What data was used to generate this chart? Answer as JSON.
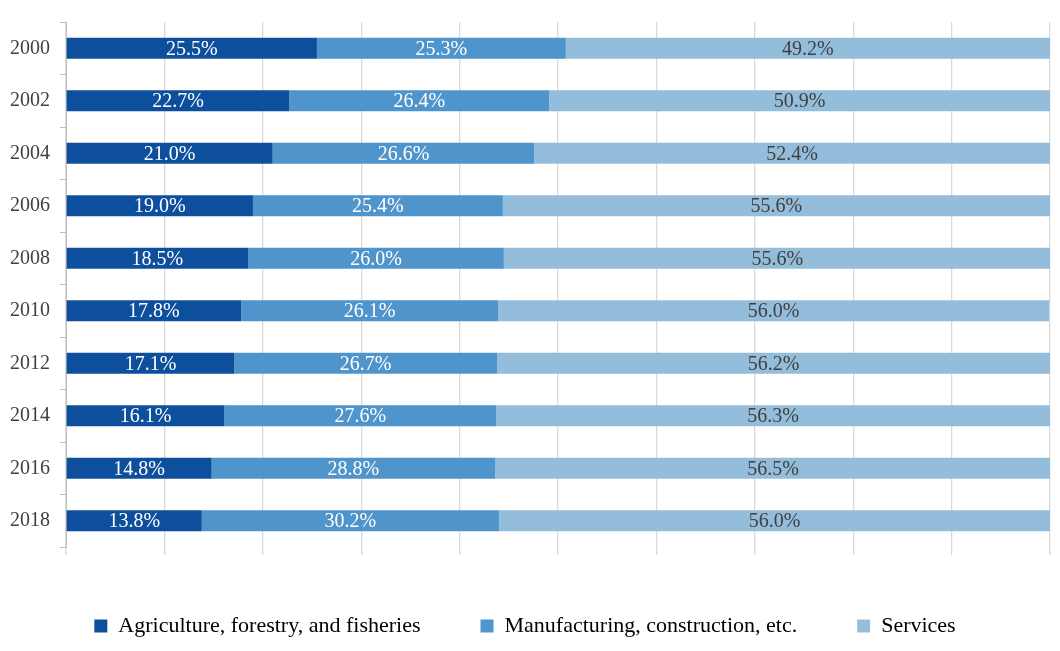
{
  "chart_data": {
    "type": "bar",
    "orientation": "horizontal",
    "stacked": true,
    "categories": [
      "2000",
      "2002",
      "2004",
      "2006",
      "2008",
      "2010",
      "2012",
      "2014",
      "2016",
      "2018"
    ],
    "series": [
      {
        "name": "Agriculture, forestry, and fisheries",
        "color": "#0e4f9d",
        "values": [
          25.5,
          22.7,
          21.0,
          19.0,
          18.5,
          17.8,
          17.1,
          16.1,
          14.8,
          13.8
        ],
        "value_labels": [
          "25.5%",
          "22.7%",
          "21.0%",
          "19.0%",
          "18.5%",
          "17.8%",
          "17.1%",
          "16.1%",
          "14.8%",
          "13.8%"
        ]
      },
      {
        "name": "Manufacturing, construction, etc.",
        "color": "#4f95cc",
        "values": [
          25.3,
          26.4,
          26.6,
          25.4,
          26.0,
          26.1,
          26.7,
          27.6,
          28.8,
          30.2
        ],
        "value_labels": [
          "25.3%",
          "26.4%",
          "26.6%",
          "25.4%",
          "26.0%",
          "26.1%",
          "26.7%",
          "27.6%",
          "28.8%",
          "30.2%"
        ]
      },
      {
        "name": "Services",
        "color": "#94bddc",
        "values": [
          49.2,
          50.9,
          52.4,
          55.6,
          55.6,
          56.0,
          56.2,
          56.3,
          56.5,
          56.0
        ],
        "value_labels": [
          "49.2%",
          "50.9%",
          "52.4%",
          "55.6%",
          "55.6%",
          "56.0%",
          "56.2%",
          "56.3%",
          "56.5%",
          "56.0%"
        ]
      }
    ],
    "xlim": [
      0,
      100
    ],
    "xticks": [
      {
        "value": 0,
        "label": null
      },
      {
        "value": 10,
        "label": null
      },
      {
        "value": 20,
        "label": null
      },
      {
        "value": 30,
        "label": null
      },
      {
        "value": 40,
        "label": null
      },
      {
        "value": 50,
        "label": null
      },
      {
        "value": 60,
        "label": null
      },
      {
        "value": 70,
        "label": null
      },
      {
        "value": 80,
        "label": null
      },
      {
        "value": 90,
        "label": null
      },
      {
        "value": 100,
        "label": null
      }
    ],
    "tick_labels": "y",
    "grid": "x",
    "legend": "bottom"
  }
}
